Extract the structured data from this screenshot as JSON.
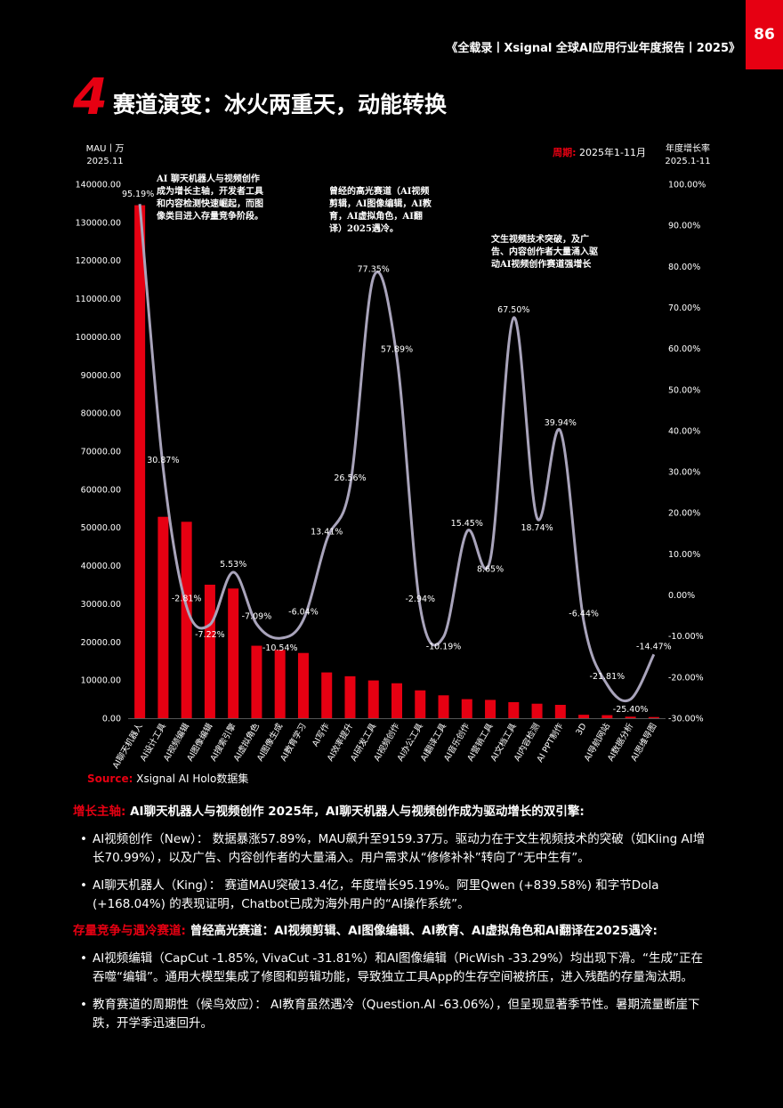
{
  "header": {
    "report_title": "《全载录丨Xsignal 全球AI应用行业年度报告丨2025》",
    "page_number": "86"
  },
  "title": {
    "number": "4",
    "text": "赛道演变：冰火两重天，动能转换"
  },
  "chart_data": {
    "type": "bar",
    "left_axis_label_line1": "MAU丨万",
    "left_axis_label_line2": "2025.11",
    "right_axis_label_line1": "年度增长率",
    "right_axis_label_line2": "2025.1-11",
    "period_label": "周期:",
    "period_value": " 2025年1-11月",
    "categories": [
      "AI聊天机器人",
      "AI设计工具",
      "AI视频编辑",
      "AI图像编辑",
      "AI搜索引擎",
      "AI虚拟角色",
      "AI图像生成",
      "AI教育学习",
      "AI写作",
      "AI效率提升",
      "AI研发工具",
      "AI视频创作",
      "AI办公工具",
      "AI翻译工具",
      "AI音乐创作",
      "AI营销工具",
      "AI文档工具",
      "AI内容检测",
      "AI PPT制作",
      "3D",
      "AI导航网站",
      "AI数据分析",
      "AI思维导图"
    ],
    "series": [
      {
        "type": "bar",
        "color": "#e60012",
        "values": [
          134500,
          52800,
          51500,
          35000,
          34000,
          19000,
          17900,
          17100,
          12000,
          11000,
          9900,
          9159.37,
          7300,
          6000,
          5000,
          4800,
          4200,
          3800,
          3500,
          900,
          800,
          400,
          300
        ]
      },
      {
        "type": "line",
        "color": "#a9a4bb",
        "values": [
          95.19,
          30.87,
          -2.81,
          -7.22,
          5.53,
          -7.09,
          -10.54,
          -6.04,
          13.41,
          26.56,
          77.35,
          57.89,
          -2.94,
          -10.19,
          15.45,
          8.65,
          67.5,
          18.74,
          39.94,
          -6.44,
          -21.81,
          -25.4,
          -14.47
        ]
      }
    ],
    "line_labels": [
      "95.19%",
      "30.87%",
      "-2.81%",
      "-7.22%",
      "5.53%",
      "-7.09%",
      "-10.54%",
      "-6.04%",
      "13.41%",
      "26.56%",
      "77.35%",
      "57.89%",
      "-2.94%",
      "-10.19%",
      "15.45%",
      "8.65%",
      "67.50%",
      "18.74%",
      "39.94%",
      "-6.44%",
      "-21.81%",
      "-25.40%",
      "-14.47%"
    ],
    "ylim_left": [
      0,
      140000
    ],
    "ylim_right": [
      -30,
      100
    ],
    "left_ticks": [
      "0.00",
      "10000.00",
      "20000.00",
      "30000.00",
      "40000.00",
      "50000.00",
      "60000.00",
      "70000.00",
      "80000.00",
      "90000.00",
      "100000.00",
      "110000.00",
      "120000.00",
      "130000.00",
      "140000.00"
    ],
    "right_ticks": [
      "-30.00%",
      "-20.00%",
      "-10.00%",
      "0.00%",
      "10.00%",
      "20.00%",
      "30.00%",
      "40.00%",
      "50.00%",
      "60.00%",
      "70.00%",
      "80.00%",
      "90.00%",
      "100.00%"
    ],
    "annotations": [
      [
        "AI 聊天机器人与视频创作",
        "成为增长主轴，开发者工具",
        "和内容检测快速崛起，而图",
        "像类目进入存量竞争阶段。"
      ],
      [
        "曾经的高光赛道（AI视频",
        "剪辑，AI图像编辑，AI教",
        "育，AI虚拟角色，AI翻",
        "译）2025遇冷。"
      ],
      [
        "文生视频技术突破，及广",
        "告、内容创作者大量涌入驱",
        "动AI视频创作赛道强增长"
      ]
    ],
    "legend": "none",
    "grid": false
  },
  "source": {
    "label": "Source:",
    "text": " Xsignal AI Holo数据集"
  },
  "section1": {
    "highlight": "增长主轴:",
    "text": " AI聊天机器人与视频创作 2025年，AI聊天机器人与视频创作成为驱动增长的双引擎:",
    "bullets": [
      "AI视频创作（New）：  数据暴涨57.89%，MAU飙升至9159.37万。驱动力在于文生视频技术的突破（如Kling AI增长70.99%），以及广告、内容创作者的大量涌入。用户需求从“修修补补”转向了“无中生有”。",
      "AI聊天机器人（King）：  赛道MAU突破13.4亿，年度增长95.19%。阿里Qwen (+839.58%) 和字节Dola (+168.04%) 的表现证明，Chatbot已成为海外用户的“AI操作系统”。"
    ]
  },
  "section2": {
    "highlight": "存量竞争与遇冷赛道:",
    "text": " 曾经高光赛道：AI视频剪辑、AI图像编辑、AI教育、AI虚拟角色和AI翻译在2025遇冷:",
    "bullets": [
      "AI视频编辑（CapCut -1.85%, VivaCut -31.81%）和AI图像编辑（PicWish -33.29%）均出现下滑。“生成”正在吞噬“编辑”。通用大模型集成了修图和剪辑功能，导致独立工具App的生存空间被挤压，进入残酷的存量淘汰期。",
      "教育赛道的周期性（候鸟效应）：  AI教育虽然遇冷（Question.AI -63.06%），但呈现显著季节性。暑期流量断崖下跌，开学季迅速回升。"
    ]
  },
  "bullet_glyph": "•"
}
